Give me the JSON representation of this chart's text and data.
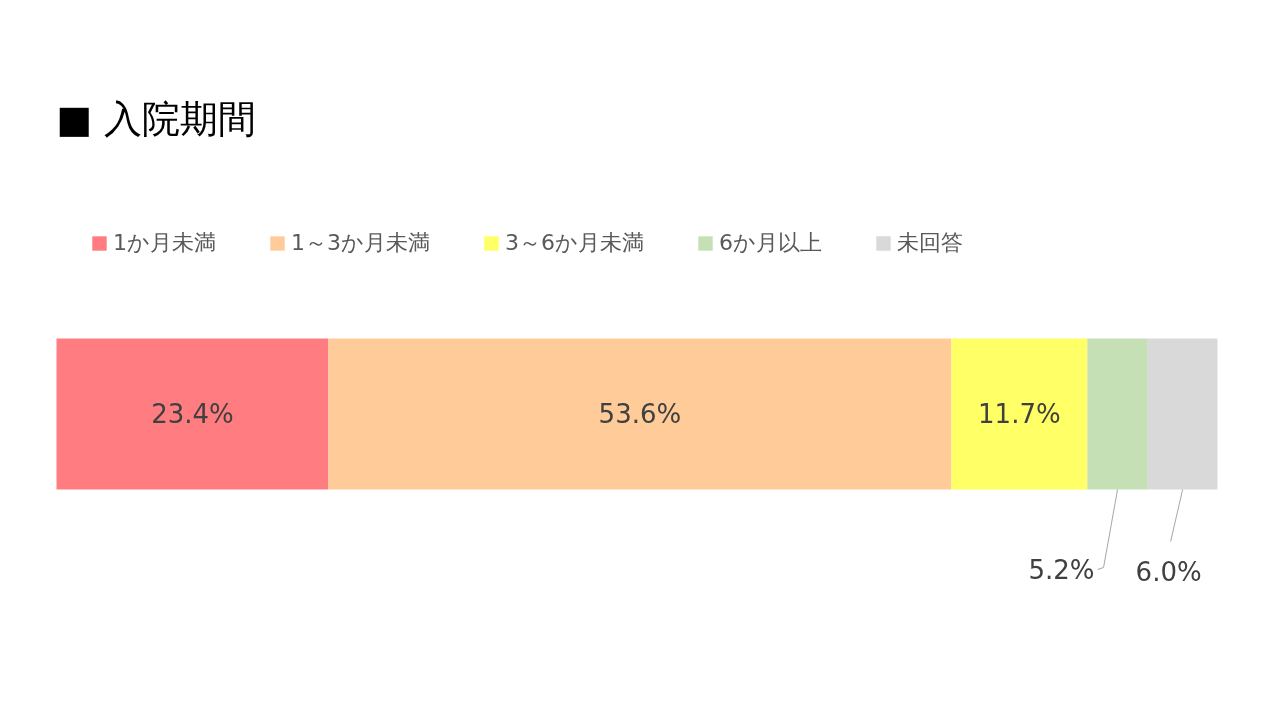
{
  "chart_data": {
    "type": "bar",
    "orientation": "horizontal",
    "stacked": true,
    "title": "■ 入院期間",
    "categories": [
      null
    ],
    "legend": "top",
    "series": [
      {
        "name": "1か月未満",
        "color": "#ff7c80",
        "values": [
          23.4
        ],
        "value_labels": [
          "23.4%"
        ]
      },
      {
        "name": "1～3か月未満",
        "color": "#ffcc99",
        "values": [
          53.6
        ],
        "value_labels": [
          "53.6%"
        ]
      },
      {
        "name": "3～6か月未満",
        "color": "#ffff66",
        "values": [
          11.7
        ],
        "value_labels": [
          "11.7%"
        ]
      },
      {
        "name": "6か月以上",
        "color": "#c5e0b4",
        "values": [
          5.2
        ],
        "value_labels": [
          "5.2%"
        ]
      },
      {
        "name": "未回答",
        "color": "#d9d9d9",
        "values": [
          6.0
        ],
        "value_labels": [
          "6.0%"
        ]
      }
    ]
  }
}
